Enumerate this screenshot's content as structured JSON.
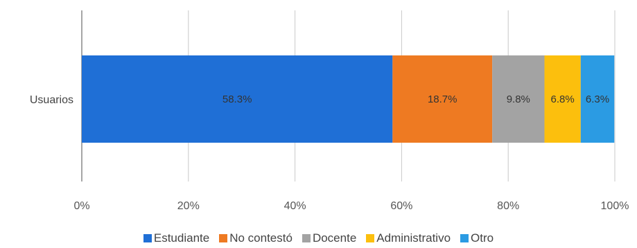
{
  "chart_data": {
    "type": "bar",
    "orientation": "horizontal",
    "stacked": true,
    "categories": [
      "Usuarios"
    ],
    "series": [
      {
        "name": "Estudiante",
        "values": [
          58.3
        ],
        "label": "58.3%",
        "color": "#1f6fd6"
      },
      {
        "name": "No contestó",
        "values": [
          18.7
        ],
        "label": "18.7%",
        "color": "#ee7a22"
      },
      {
        "name": "Docente",
        "values": [
          9.8
        ],
        "label": "9.8%",
        "color": "#a3a3a3"
      },
      {
        "name": "Administrativo",
        "values": [
          6.8
        ],
        "label": "6.8%",
        "color": "#fcbf0d"
      },
      {
        "name": "Otro",
        "values": [
          6.3
        ],
        "label": "6.3%",
        "color": "#2b9be3"
      }
    ],
    "xlim": [
      0,
      100
    ],
    "x_ticks": [
      "0%",
      "20%",
      "40%",
      "60%",
      "80%",
      "100%"
    ],
    "grid": true,
    "legend_position": "bottom"
  }
}
